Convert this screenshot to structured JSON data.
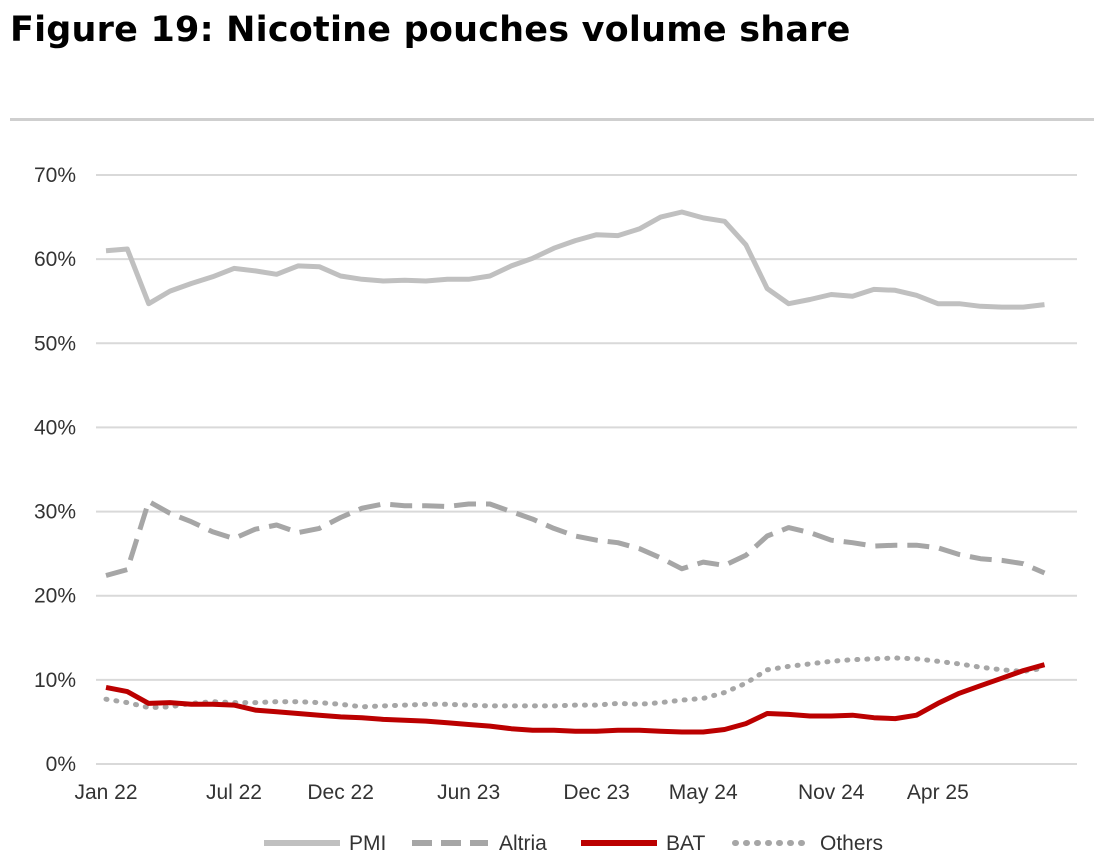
{
  "title": "Figure 19: Nicotine pouches volume share",
  "chart_data": {
    "type": "line",
    "xlabel": "",
    "ylabel": "",
    "x_tick_labels": [
      "Jan 22",
      "Jul 22",
      "Dec 22",
      "Jun 23",
      "Dec 23",
      "May 24",
      "Nov 24",
      "Apr 25"
    ],
    "x_tick_positions": [
      0,
      6,
      11,
      17,
      23,
      28,
      34,
      39
    ],
    "y_ticks": [
      "0%",
      "10%",
      "20%",
      "30%",
      "40%",
      "50%",
      "60%",
      "70%"
    ],
    "ylim": [
      0,
      70
    ],
    "grid": true,
    "legend_position": "bottom",
    "series": [
      {
        "name": "PMI",
        "style": "solid",
        "color": "#c0c0c0",
        "values": [
          61.0,
          61.2,
          54.7,
          56.2,
          57.1,
          57.9,
          58.9,
          58.6,
          58.2,
          59.2,
          59.1,
          58.0,
          57.6,
          57.4,
          57.5,
          57.4,
          57.6,
          57.6,
          58.0,
          59.2,
          60.1,
          61.3,
          62.2,
          62.9,
          62.8,
          63.6,
          65.0,
          65.6,
          64.9,
          64.5,
          61.7,
          56.5,
          54.7,
          55.2,
          55.8,
          55.6,
          56.4,
          56.3,
          55.7,
          54.7,
          54.7,
          54.4,
          54.3,
          54.3,
          54.6
        ]
      },
      {
        "name": "Altria",
        "style": "dashed",
        "color": "#a6a6a6",
        "values": [
          22.4,
          23.1,
          31.2,
          29.8,
          28.8,
          27.6,
          26.8,
          27.9,
          28.4,
          27.5,
          28.0,
          29.3,
          30.4,
          30.9,
          30.7,
          30.7,
          30.6,
          30.9,
          30.9,
          30.0,
          29.1,
          28.0,
          27.1,
          26.6,
          26.3,
          25.6,
          24.5,
          23.2,
          24.0,
          23.6,
          24.8,
          27.1,
          28.1,
          27.5,
          26.6,
          26.3,
          25.9,
          26.0,
          26.0,
          25.7,
          24.9,
          24.4,
          24.2,
          23.8,
          22.7
        ]
      },
      {
        "name": "BAT",
        "style": "solid",
        "color": "#bb0000",
        "values": [
          9.1,
          8.6,
          7.2,
          7.3,
          7.1,
          7.1,
          7.0,
          6.4,
          6.2,
          6.0,
          5.8,
          5.6,
          5.5,
          5.3,
          5.2,
          5.1,
          4.9,
          4.7,
          4.5,
          4.2,
          4.0,
          4.0,
          3.9,
          3.9,
          4.0,
          4.0,
          3.9,
          3.8,
          3.8,
          4.1,
          4.8,
          6.0,
          5.9,
          5.7,
          5.7,
          5.8,
          5.5,
          5.4,
          5.8,
          7.2,
          8.4,
          9.3,
          10.2,
          11.1,
          11.8
        ]
      },
      {
        "name": "Others",
        "style": "dotted",
        "color": "#a6a6a6",
        "values": [
          7.7,
          7.3,
          6.7,
          6.8,
          7.2,
          7.4,
          7.3,
          7.3,
          7.4,
          7.4,
          7.3,
          7.1,
          6.8,
          6.9,
          7.0,
          7.1,
          7.1,
          7.0,
          6.9,
          6.9,
          6.9,
          6.9,
          7.0,
          7.0,
          7.2,
          7.1,
          7.3,
          7.6,
          7.8,
          8.5,
          9.6,
          11.2,
          11.6,
          11.9,
          12.2,
          12.4,
          12.5,
          12.6,
          12.5,
          12.2,
          11.9,
          11.5,
          11.2,
          11.0,
          11.4
        ]
      }
    ]
  }
}
